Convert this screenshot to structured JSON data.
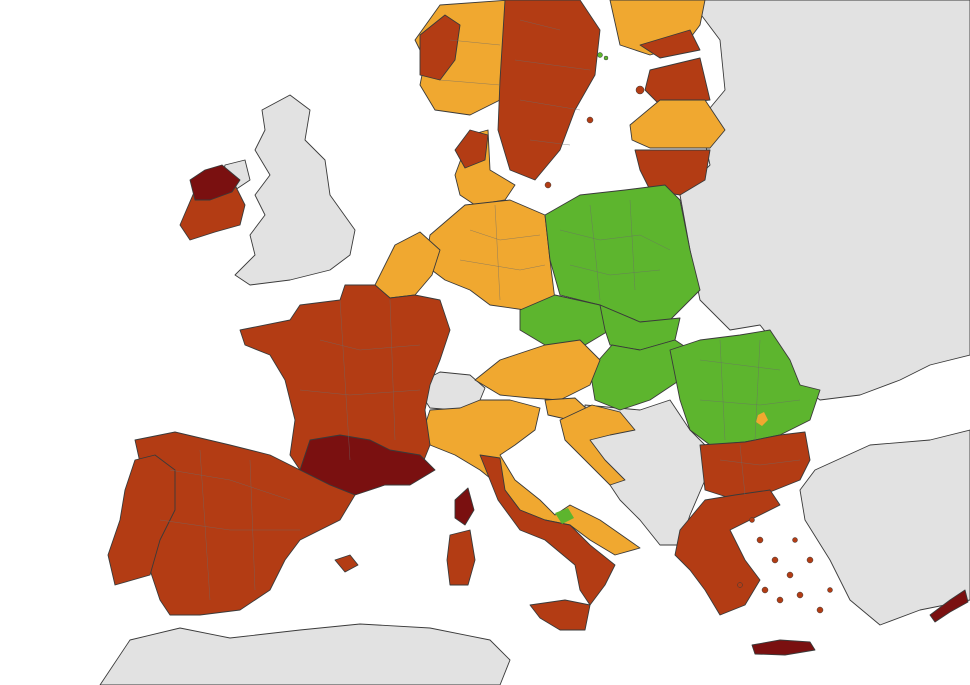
{
  "map": {
    "colors": {
      "sea": "#ffffff",
      "non_eu": "#e2e2e2",
      "green": "#5db52e",
      "orange": "#f0a830",
      "red": "#b33c14",
      "dark_red": "#7a1010"
    },
    "regions": [
      {
        "name": "ireland",
        "status": "red"
      },
      {
        "name": "northern-ireland",
        "status": "non_eu"
      },
      {
        "name": "great-britain",
        "status": "non_eu"
      },
      {
        "name": "iceland-norway",
        "status": "orange"
      },
      {
        "name": "sweden",
        "status": "red"
      },
      {
        "name": "finland",
        "status": "orange"
      },
      {
        "name": "estonia",
        "status": "red"
      },
      {
        "name": "latvia",
        "status": "orange"
      },
      {
        "name": "lithuania",
        "status": "red"
      },
      {
        "name": "denmark",
        "status": "orange"
      },
      {
        "name": "germany",
        "status": "orange"
      },
      {
        "name": "poland",
        "status": "green"
      },
      {
        "name": "czechia",
        "status": "green"
      },
      {
        "name": "slovakia",
        "status": "green"
      },
      {
        "name": "hungary",
        "status": "green"
      },
      {
        "name": "romania",
        "status": "green"
      },
      {
        "name": "bulgaria",
        "status": "red"
      },
      {
        "name": "greece",
        "status": "red"
      },
      {
        "name": "austria",
        "status": "orange"
      },
      {
        "name": "slovenia",
        "status": "orange"
      },
      {
        "name": "croatia",
        "status": "orange"
      },
      {
        "name": "italy-north",
        "status": "orange"
      },
      {
        "name": "italy-south",
        "status": "red"
      },
      {
        "name": "france",
        "status": "red"
      },
      {
        "name": "france-occitanie",
        "status": "dark_red"
      },
      {
        "name": "benelux",
        "status": "orange"
      },
      {
        "name": "spain",
        "status": "red"
      },
      {
        "name": "portugal",
        "status": "red"
      },
      {
        "name": "switzerland",
        "status": "non_eu"
      },
      {
        "name": "balkans",
        "status": "non_eu"
      },
      {
        "name": "turkey",
        "status": "non_eu"
      },
      {
        "name": "cyprus",
        "status": "dark_red"
      },
      {
        "name": "crete",
        "status": "dark_red"
      }
    ]
  }
}
